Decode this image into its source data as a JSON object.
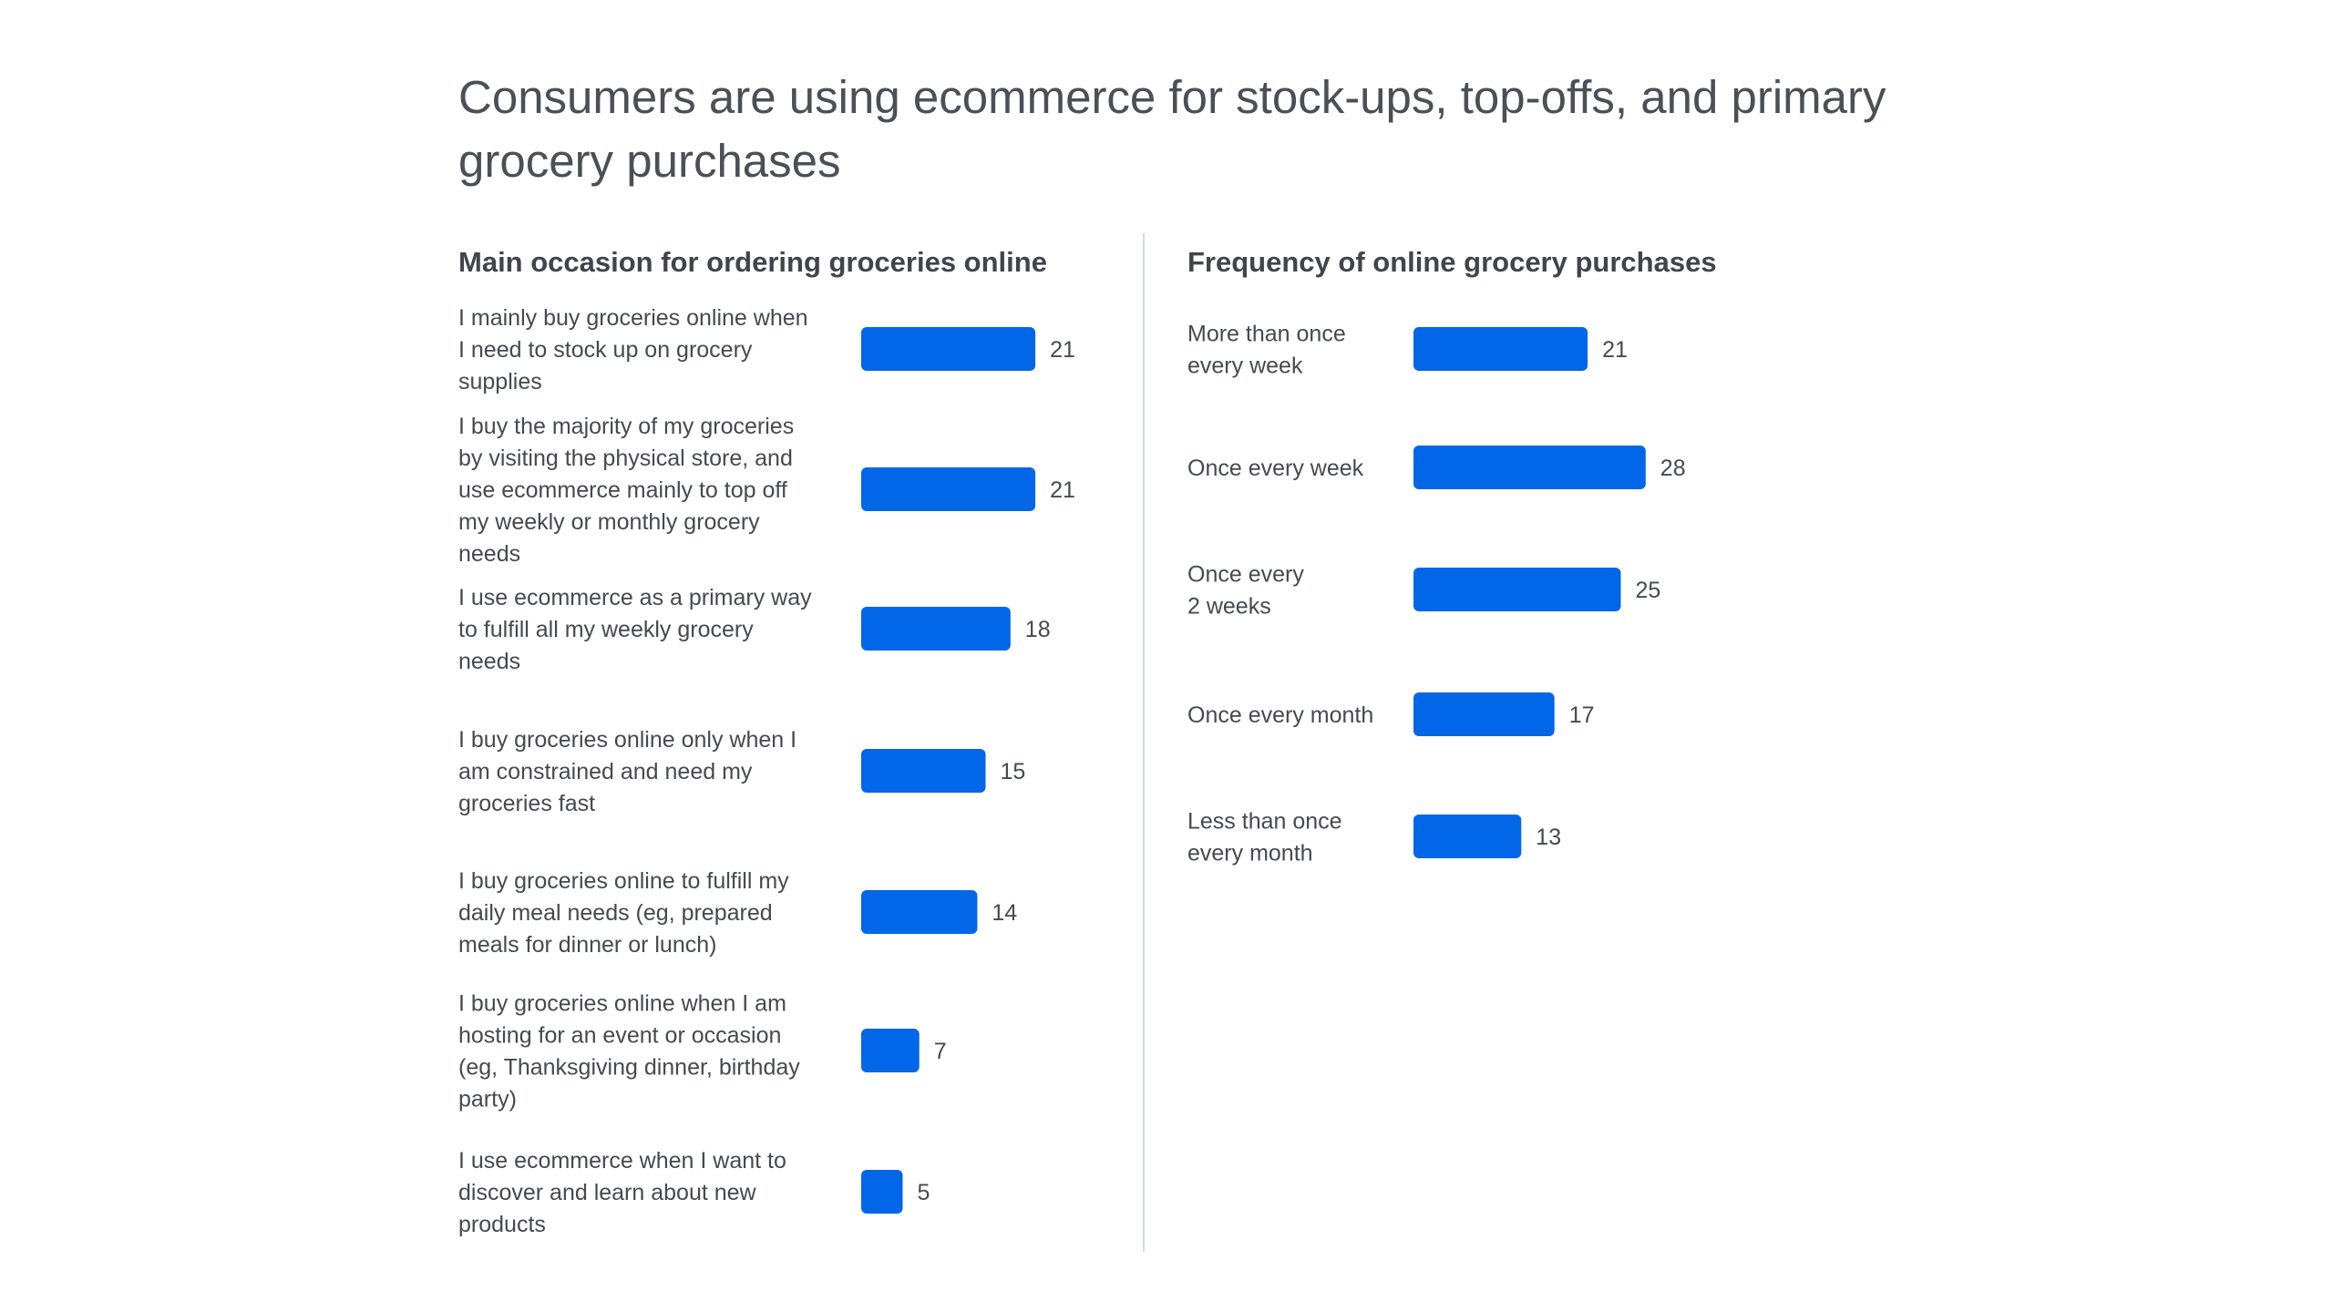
{
  "title": "Consumers are using ecommerce for stock-ups, top-offs, and primary grocery purchases",
  "colors": {
    "bar": "#0266e8",
    "text": "#444a52",
    "divider": "#d5dae0"
  },
  "chart_data": [
    {
      "type": "bar",
      "orientation": "horizontal",
      "title": "Main occasion for ordering groceries online",
      "categories": [
        "I mainly buy groceries online when I need to stock up on grocery supplies",
        "I buy the majority of my groceries by visiting the physical store, and use ecommerce mainly to top off my weekly or monthly grocery needs",
        "I use ecommerce as a primary way to fulfill all my weekly grocery needs",
        "I buy groceries online only when I am constrained and need my groceries fast",
        "I buy groceries online to fulfill my daily meal needs (eg, prepared meals for dinner or lunch)",
        "I buy groceries online when I am hosting for an event or occasion (eg, Thanksgiving dinner, birthday party)",
        "I use ecommerce when I want to discover and learn about new products"
      ],
      "values": [
        21,
        21,
        18,
        15,
        14,
        7,
        5
      ],
      "label_lines": [
        [
          "I mainly buy groceries online when",
          "I need to stock up on grocery",
          "supplies"
        ],
        [
          "I buy the majority of my groceries",
          "by visiting the physical store, and",
          "use ecommerce mainly to top off",
          "my weekly or monthly grocery",
          "needs"
        ],
        [
          "I use ecommerce as a primary way",
          "to fulfill all my weekly grocery",
          "needs"
        ],
        [
          "I buy groceries online only when I",
          "am constrained and need my",
          "groceries fast"
        ],
        [
          "I buy groceries online to fulfill my",
          "daily meal needs (eg, prepared",
          "meals for dinner or lunch)"
        ],
        [
          "I buy groceries online when I am",
          "hosting for an event or occasion",
          "(eg, Thanksgiving dinner, birthday",
          "party)"
        ],
        [
          "I use ecommerce when I want to",
          "discover and learn about new",
          "products"
        ]
      ],
      "data_labels": true,
      "grid": false
    },
    {
      "type": "bar",
      "orientation": "horizontal",
      "title": "Frequency of online grocery purchases",
      "categories": [
        "More than once every week",
        "Once every week",
        "Once every 2 weeks",
        "Once every month",
        "Less than once every month"
      ],
      "values": [
        21,
        28,
        25,
        17,
        13
      ],
      "label_lines": [
        [
          "More than once",
          "every week"
        ],
        [
          "Once every week"
        ],
        [
          "Once every",
          "2 weeks"
        ],
        [
          "Once every month"
        ],
        [
          "Less than once",
          "every month"
        ]
      ],
      "data_labels": true,
      "grid": false
    }
  ]
}
